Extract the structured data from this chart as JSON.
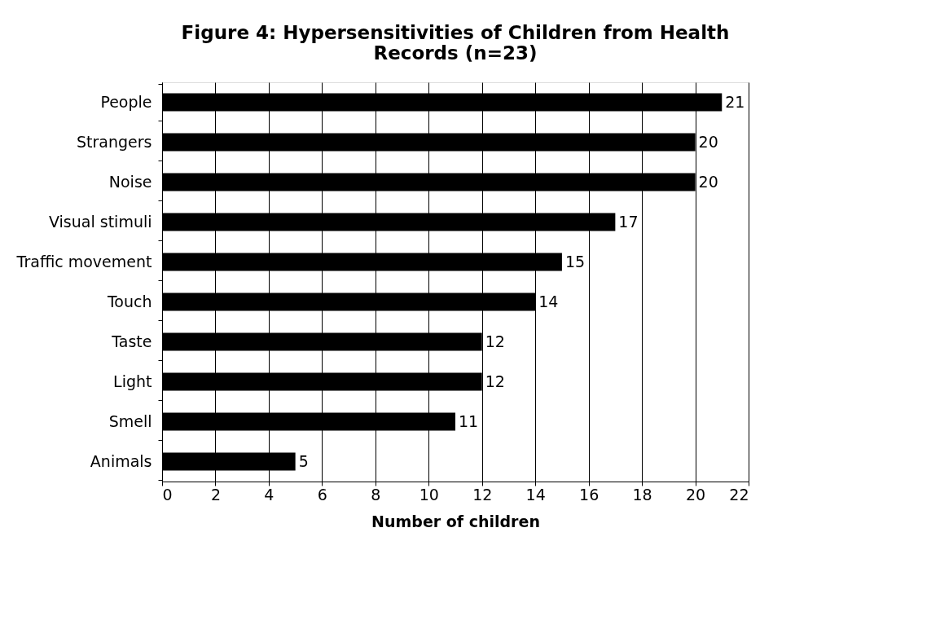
{
  "chart_data": {
    "type": "bar",
    "orientation": "horizontal",
    "title": "Figure 4: Hypersensitivities of Children from Health Records (n=23)",
    "xlabel": "Number of children",
    "categories": [
      "People",
      "Strangers",
      "Noise",
      "Visual stimuli",
      "Traffic movement",
      "Touch",
      "Taste",
      "Light",
      "Smell",
      "Animals"
    ],
    "values": [
      21,
      20,
      20,
      17,
      15,
      14,
      12,
      12,
      11,
      5
    ],
    "color": "#000000",
    "xlim": [
      0,
      22
    ],
    "xticks": [
      0,
      2,
      4,
      6,
      8,
      10,
      12,
      14,
      16,
      18,
      20,
      22
    ],
    "grid": "x",
    "data_labels": true
  }
}
